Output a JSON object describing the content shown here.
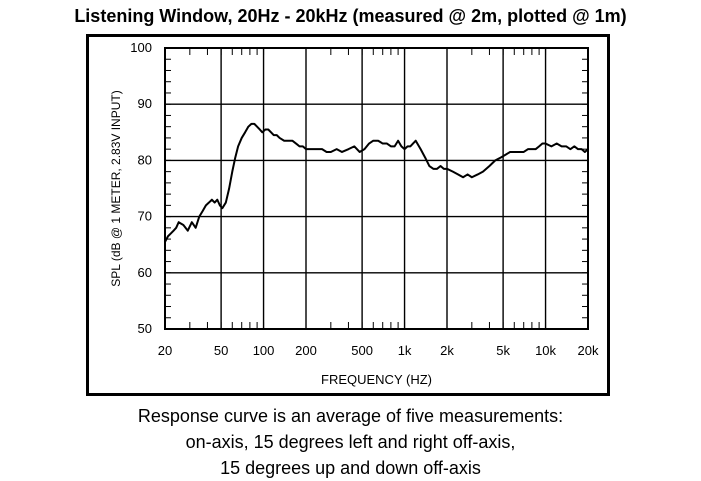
{
  "title": "Listening Window, 20Hz - 20kHz (measured @ 2m, plotted @ 1m)",
  "caption": {
    "lines": [
      "Response curve is an average of five measurements:",
      "on-axis, 15 degrees left and right off-axis,",
      "15 degrees up and down off-axis"
    ]
  },
  "chart_data": {
    "type": "line",
    "title": "Listening Window, 20Hz - 20kHz (measured @ 2m, plotted @ 1m)",
    "xlabel": "FREQUENCY (HZ)",
    "ylabel": "SPL (dB @ 1 METER, 2.83V INPUT)",
    "x_scale": "log",
    "xlim": [
      20,
      20000
    ],
    "ylim": [
      50,
      100
    ],
    "grid": true,
    "x_ticks": [
      {
        "value": 20,
        "label": "20"
      },
      {
        "value": 50,
        "label": "50"
      },
      {
        "value": 100,
        "label": "100"
      },
      {
        "value": 200,
        "label": "200"
      },
      {
        "value": 500,
        "label": "500"
      },
      {
        "value": 1000,
        "label": "1k"
      },
      {
        "value": 2000,
        "label": "2k"
      },
      {
        "value": 5000,
        "label": "5k"
      },
      {
        "value": 10000,
        "label": "10k"
      },
      {
        "value": 20000,
        "label": "20k"
      }
    ],
    "y_ticks": [
      50,
      60,
      70,
      80,
      90,
      100
    ],
    "series": [
      {
        "color": "#000000",
        "x": [
          20,
          21,
          22,
          23,
          24,
          25,
          27,
          29,
          31,
          33,
          35,
          37,
          39,
          41,
          43,
          45,
          47,
          49,
          51,
          54,
          57,
          60,
          63,
          66,
          70,
          74,
          78,
          82,
          86,
          90,
          94,
          98,
          103,
          108,
          113,
          118,
          124,
          130,
          140,
          150,
          160,
          170,
          180,
          190,
          200,
          220,
          240,
          260,
          280,
          300,
          330,
          360,
          400,
          440,
          480,
          520,
          560,
          600,
          650,
          700,
          750,
          800,
          850,
          900,
          950,
          1000,
          1050,
          1100,
          1200,
          1300,
          1400,
          1500,
          1600,
          1700,
          1800,
          1900,
          2000,
          2200,
          2400,
          2600,
          2800,
          3000,
          3300,
          3600,
          4000,
          4400,
          4800,
          5200,
          5600,
          6000,
          6500,
          7000,
          7500,
          8000,
          8500,
          9000,
          9500,
          10000,
          11000,
          12000,
          13000,
          14000,
          15000,
          16000,
          17000,
          18000,
          19000,
          20000
        ],
        "y": [
          65.5,
          66.5,
          67,
          67.5,
          68,
          69,
          68.5,
          67.5,
          69,
          68,
          70,
          71,
          72,
          72.5,
          73,
          72.5,
          73,
          72,
          71.5,
          72.5,
          75,
          78,
          80.5,
          82.5,
          84,
          85,
          86,
          86.5,
          86.5,
          86,
          85.5,
          85,
          85.5,
          85.5,
          85,
          84.5,
          84.5,
          84,
          83.5,
          83.5,
          83.5,
          83,
          82.5,
          82.5,
          82,
          82,
          82,
          82,
          81.5,
          81.5,
          82,
          81.5,
          82,
          82.5,
          81.5,
          82,
          83,
          83.5,
          83.5,
          83,
          83,
          82.5,
          82.5,
          83.5,
          82.5,
          82,
          82.5,
          82.5,
          83.5,
          82,
          80.5,
          79,
          78.5,
          78.5,
          79,
          78.5,
          78.5,
          78,
          77.5,
          77,
          77.5,
          77,
          77.5,
          78,
          79,
          80,
          80.5,
          81,
          81.5,
          81.5,
          81.5,
          81.5,
          82,
          82,
          82,
          82.5,
          83,
          83,
          82.5,
          83,
          82.5,
          82.5,
          82,
          82.5,
          82,
          82,
          81.5,
          82
        ]
      }
    ]
  }
}
